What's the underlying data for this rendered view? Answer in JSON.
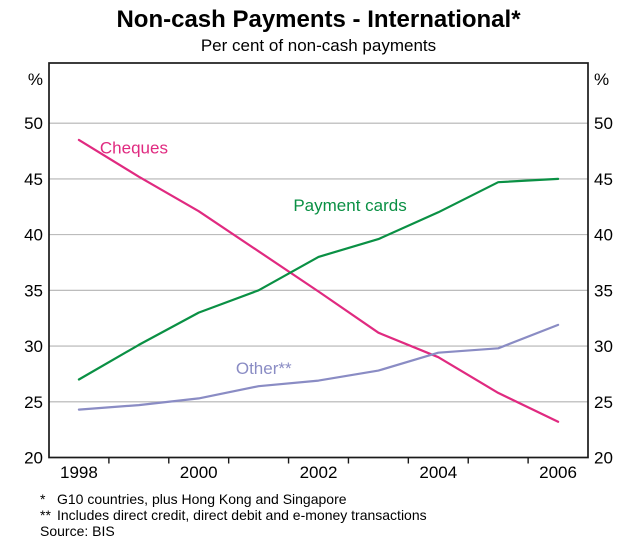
{
  "chart_data": {
    "type": "line",
    "title": "Non-cash Payments - International*",
    "subtitle": "Per cent of non-cash payments",
    "unit_label": "%",
    "x": [
      1998,
      1999,
      2000,
      2001,
      2002,
      2003,
      2004,
      2005,
      2006
    ],
    "x_range": [
      1997.5,
      2006.5
    ],
    "xtick_years": [
      1998,
      2000,
      2002,
      2004,
      2006
    ],
    "xtick_labels": [
      "1998",
      "2000",
      "2002",
      "2004",
      "2006"
    ],
    "ylim": [
      20,
      55.4
    ],
    "yticks": [
      20,
      25,
      30,
      35,
      40,
      45,
      50
    ],
    "grid": true,
    "legend": "inline-labels",
    "series": [
      {
        "name": "Cheques",
        "color": "#e02a80",
        "values": [
          48.5,
          45.2,
          42.1,
          38.5,
          34.9,
          31.2,
          29.0,
          25.8,
          23.2
        ],
        "label_pos": {
          "x": 1998.35,
          "y": 47.3
        }
      },
      {
        "name": "Payment cards",
        "color": "#0a9044",
        "values": [
          27.0,
          30.1,
          33.0,
          35.0,
          38.0,
          39.6,
          42.0,
          44.7,
          45.0
        ],
        "label_pos": {
          "x": 2001.58,
          "y": 42.1
        }
      },
      {
        "name": "Other**",
        "color": "#8a8cc4",
        "values": [
          24.3,
          24.7,
          25.3,
          26.4,
          26.9,
          27.8,
          29.4,
          29.8,
          31.9
        ],
        "label_pos": {
          "x": 2000.62,
          "y": 27.5
        }
      }
    ],
    "colors": {
      "grid": "#b3b3b3",
      "axis": "#1a1a1a",
      "text": "#000000"
    }
  },
  "footnotes": {
    "items": [
      {
        "marker": "*",
        "text": "G10 countries, plus Hong Kong and Singapore"
      },
      {
        "marker": "**",
        "text": "Includes direct credit, direct debit and e-money transactions"
      }
    ],
    "source": "Source: BIS"
  }
}
